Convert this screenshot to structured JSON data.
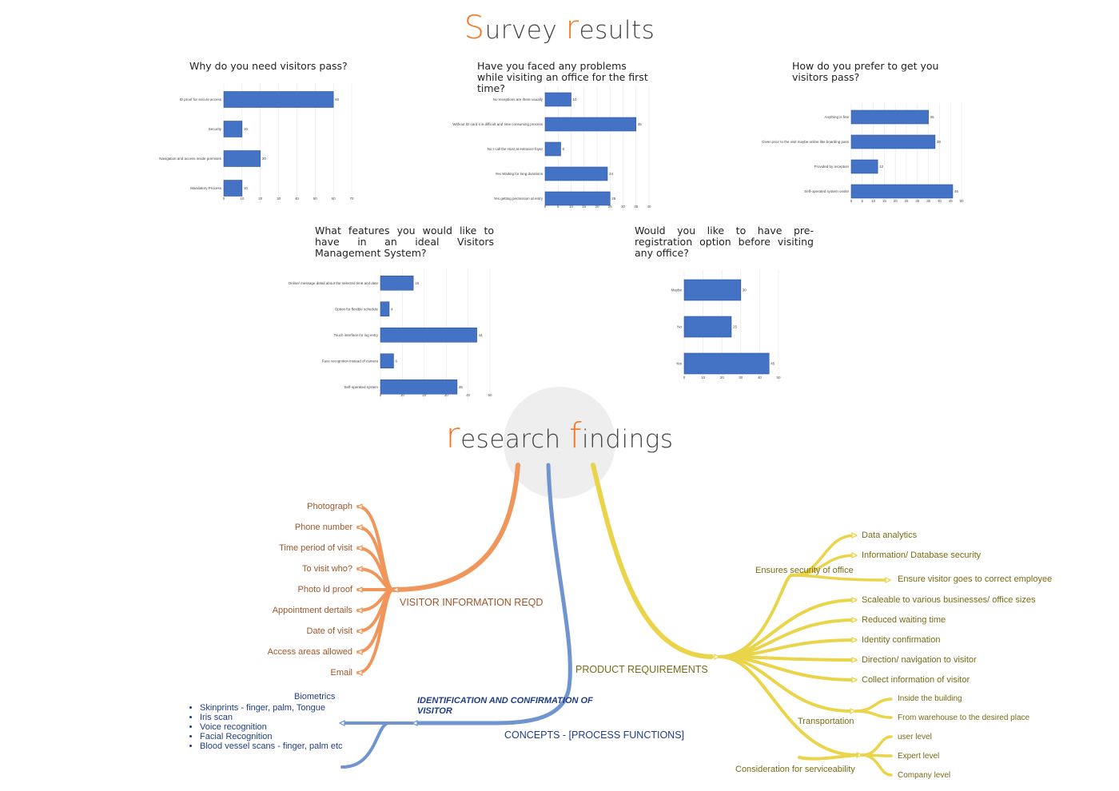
{
  "survey_title": {
    "first": "S",
    "rest1": "urvey ",
    "second": "r",
    "rest2": "esults"
  },
  "research_title": {
    "first": "r",
    "rest1": "esearch ",
    "second": "f",
    "rest2": "indings"
  },
  "colors": {
    "bar": "#4472c4",
    "accent": "#f07a2a",
    "orange_branch": "#f0965a",
    "blue_branch": "#6f94cf",
    "yellow_branch": "#e9d44a"
  },
  "chart_data": [
    {
      "type": "bar",
      "title": "Why do you need visitors pass?",
      "categories": [
        "ID proof for secure access",
        "Security",
        "Navigation and access inside premises",
        "Mandatory Process"
      ],
      "values": [
        60,
        10,
        20,
        10
      ],
      "xlim": [
        0,
        70
      ],
      "ticks": [
        0,
        10,
        20,
        30,
        40,
        50,
        60,
        70
      ]
    },
    {
      "type": "bar",
      "title": "Have you faced any problems while visiting an office for the first time?",
      "categories": [
        "No receptions are there usually",
        "Without ID card it is difficult and time consuming process",
        "No I call the Host at entrance foyer",
        "Yes Waiting for long durations",
        "Yes getting permission at entry"
      ],
      "values": [
        10,
        35,
        6,
        24,
        25
      ],
      "xlim": [
        0,
        40
      ],
      "ticks": [
        0,
        5,
        10,
        15,
        20,
        25,
        30,
        35,
        40
      ]
    },
    {
      "type": "bar",
      "title": "How do you prefer to get you visitors pass?",
      "categories": [
        "Anything is fine",
        "Given prior to the visit maybe online like boarding pass",
        "Provided by reception",
        "Self-operated system onsite"
      ],
      "values": [
        35,
        38,
        12,
        46
      ],
      "xlim": [
        0,
        50
      ],
      "ticks": [
        0,
        5,
        10,
        15,
        20,
        25,
        30,
        35,
        40,
        45,
        50
      ]
    },
    {
      "type": "bar",
      "title": "What features you would like to have in an ideal Visitors Management System?",
      "categories": [
        "Online/ message detail about the selected time and date",
        "Option for flexible schedule",
        "Touch interface for log entry",
        "Face recognition instead of camera",
        "Self-operated system"
      ],
      "values": [
        15,
        4,
        44,
        6,
        35
      ],
      "xlim": [
        0,
        50
      ],
      "ticks": [
        0,
        10,
        20,
        30,
        40,
        50
      ]
    },
    {
      "type": "bar",
      "title": "Would you like to have pre-registration option before visiting any office?",
      "categories": [
        "Maybe",
        "No",
        "Yes"
      ],
      "values": [
        30,
        25,
        45
      ],
      "xlim": [
        0,
        50
      ],
      "ticks": [
        0,
        10,
        20,
        30,
        40,
        50
      ]
    }
  ],
  "mindmap": {
    "visitor_info": {
      "label": "VISITOR INFORMATION REQD",
      "items": [
        "Photograph",
        "Phone number",
        "Time period of visit",
        "To visit who?",
        "Photo id proof",
        "Appointment dertails",
        "Date of visit",
        "Access areas allowed",
        "Email"
      ]
    },
    "product_requirements": {
      "label": "PRODUCT REQUIREMENTS",
      "security": {
        "label": "Ensures security of office",
        "items": [
          "Data analytics",
          "Information/ Database security",
          "Ensure visitor goes to correct employee"
        ]
      },
      "items": [
        "Scaleable to various businesses/ office sizes",
        "Reduced waiting time",
        "Identity confirmation",
        "Direction/ navigation to visitor",
        "Collect information of visitor"
      ],
      "transportation": {
        "label": "Transportation",
        "items": [
          "Inside the building",
          "From warehouse to the desired place"
        ]
      },
      "serviceability": {
        "label": "Consideration for serviceability",
        "items": [
          "user level",
          "Expert level",
          "Company level"
        ]
      }
    },
    "concepts": {
      "label": "CONCEPTS - [PROCESS FUNCTIONS]",
      "identification": "IDENTIFICATION AND CONFIRMATION OF VISITOR",
      "biometrics": {
        "label": "Biometrics",
        "items": [
          "Skinprints - finger, palm, Tongue",
          "Iris scan",
          "Voice recognition",
          "Facial Recognition",
          "Blood vessel scans - finger, palm etc"
        ]
      }
    }
  }
}
